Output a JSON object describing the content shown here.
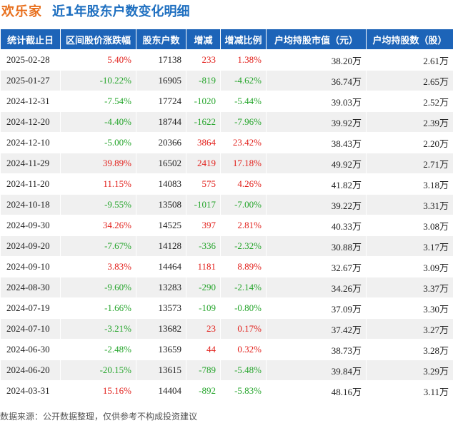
{
  "header": {
    "stock_name": "欢乐家",
    "title": "近1年股东户数变化明细"
  },
  "columns": [
    "统计截止日",
    "区间股价涨跌幅",
    "股东户数",
    "增减",
    "增减比例",
    "户均持股市值（元）",
    "户均持股数（股）"
  ],
  "rows": [
    {
      "date": "2025-02-28",
      "price_change": "5.40%",
      "holders": "17138",
      "change": "233",
      "change_pct": "1.38%",
      "avg_value": "38.20万",
      "avg_shares": "2.61万"
    },
    {
      "date": "2025-01-27",
      "price_change": "-10.22%",
      "holders": "16905",
      "change": "-819",
      "change_pct": "-4.62%",
      "avg_value": "36.74万",
      "avg_shares": "2.65万"
    },
    {
      "date": "2024-12-31",
      "price_change": "-7.54%",
      "holders": "17724",
      "change": "-1020",
      "change_pct": "-5.44%",
      "avg_value": "39.03万",
      "avg_shares": "2.52万"
    },
    {
      "date": "2024-12-20",
      "price_change": "-4.40%",
      "holders": "18744",
      "change": "-1622",
      "change_pct": "-7.96%",
      "avg_value": "39.92万",
      "avg_shares": "2.39万"
    },
    {
      "date": "2024-12-10",
      "price_change": "-5.00%",
      "holders": "20366",
      "change": "3864",
      "change_pct": "23.42%",
      "avg_value": "38.43万",
      "avg_shares": "2.20万"
    },
    {
      "date": "2024-11-29",
      "price_change": "39.89%",
      "holders": "16502",
      "change": "2419",
      "change_pct": "17.18%",
      "avg_value": "49.92万",
      "avg_shares": "2.71万"
    },
    {
      "date": "2024-11-20",
      "price_change": "11.15%",
      "holders": "14083",
      "change": "575",
      "change_pct": "4.26%",
      "avg_value": "41.82万",
      "avg_shares": "3.18万"
    },
    {
      "date": "2024-10-18",
      "price_change": "-9.55%",
      "holders": "13508",
      "change": "-1017",
      "change_pct": "-7.00%",
      "avg_value": "39.22万",
      "avg_shares": "3.31万"
    },
    {
      "date": "2024-09-30",
      "price_change": "34.26%",
      "holders": "14525",
      "change": "397",
      "change_pct": "2.81%",
      "avg_value": "40.33万",
      "avg_shares": "3.08万"
    },
    {
      "date": "2024-09-20",
      "price_change": "-7.67%",
      "holders": "14128",
      "change": "-336",
      "change_pct": "-2.32%",
      "avg_value": "30.88万",
      "avg_shares": "3.17万"
    },
    {
      "date": "2024-09-10",
      "price_change": "3.83%",
      "holders": "14464",
      "change": "1181",
      "change_pct": "8.89%",
      "avg_value": "32.67万",
      "avg_shares": "3.09万"
    },
    {
      "date": "2024-08-30",
      "price_change": "-9.60%",
      "holders": "13283",
      "change": "-290",
      "change_pct": "-2.14%",
      "avg_value": "34.26万",
      "avg_shares": "3.37万"
    },
    {
      "date": "2024-07-19",
      "price_change": "-1.66%",
      "holders": "13573",
      "change": "-109",
      "change_pct": "-0.80%",
      "avg_value": "37.09万",
      "avg_shares": "3.30万"
    },
    {
      "date": "2024-07-10",
      "price_change": "-3.21%",
      "holders": "13682",
      "change": "23",
      "change_pct": "0.17%",
      "avg_value": "37.42万",
      "avg_shares": "3.27万"
    },
    {
      "date": "2024-06-30",
      "price_change": "-2.48%",
      "holders": "13659",
      "change": "44",
      "change_pct": "0.32%",
      "avg_value": "38.73万",
      "avg_shares": "3.28万"
    },
    {
      "date": "2024-06-20",
      "price_change": "-20.15%",
      "holders": "13615",
      "change": "-789",
      "change_pct": "-5.48%",
      "avg_value": "39.84万",
      "avg_shares": "3.29万"
    },
    {
      "date": "2024-03-31",
      "price_change": "15.16%",
      "holders": "14404",
      "change": "-892",
      "change_pct": "-5.83%",
      "avg_value": "48.16万",
      "avg_shares": "3.11万"
    }
  ],
  "footer": {
    "source": "数据来源：公开数据整理，仅供参考不构成投资建议"
  },
  "colors": {
    "header_bg": "#1d64b8",
    "positive": "#e2211c",
    "negative": "#26a52c",
    "stock_name": "#e8701e",
    "title": "#1e6fc0"
  }
}
